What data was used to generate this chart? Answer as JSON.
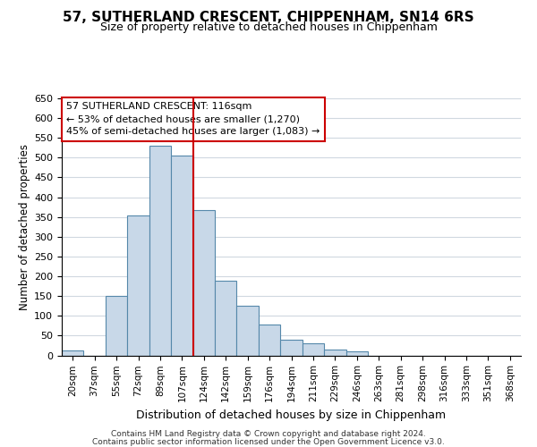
{
  "title_line1": "57, SUTHERLAND CRESCENT, CHIPPENHAM, SN14 6RS",
  "title_line2": "Size of property relative to detached houses in Chippenham",
  "xlabel": "Distribution of detached houses by size in Chippenham",
  "ylabel": "Number of detached properties",
  "bin_labels": [
    "20sqm",
    "37sqm",
    "55sqm",
    "72sqm",
    "89sqm",
    "107sqm",
    "124sqm",
    "142sqm",
    "159sqm",
    "176sqm",
    "194sqm",
    "211sqm",
    "229sqm",
    "246sqm",
    "263sqm",
    "281sqm",
    "298sqm",
    "316sqm",
    "333sqm",
    "351sqm",
    "368sqm"
  ],
  "bar_values": [
    13,
    0,
    150,
    353,
    530,
    505,
    368,
    188,
    125,
    78,
    40,
    30,
    14,
    10,
    0,
    0,
    0,
    0,
    0,
    0,
    0
  ],
  "bar_color": "#c8d8e8",
  "bar_edge_color": "#5588aa",
  "vline_x": 5.5,
  "vline_color": "#cc0000",
  "annotation_title": "57 SUTHERLAND CRESCENT: 116sqm",
  "annotation_line2": "← 53% of detached houses are smaller (1,270)",
  "annotation_line3": "45% of semi-detached houses are larger (1,083) →",
  "annotation_box_color": "#ffffff",
  "annotation_box_edge": "#cc0000",
  "ylim": [
    0,
    650
  ],
  "yticks": [
    0,
    50,
    100,
    150,
    200,
    250,
    300,
    350,
    400,
    450,
    500,
    550,
    600,
    650
  ],
  "footer_line1": "Contains HM Land Registry data © Crown copyright and database right 2024.",
  "footer_line2": "Contains public sector information licensed under the Open Government Licence v3.0.",
  "bg_color": "#ffffff",
  "grid_color": "#d0d8e0"
}
